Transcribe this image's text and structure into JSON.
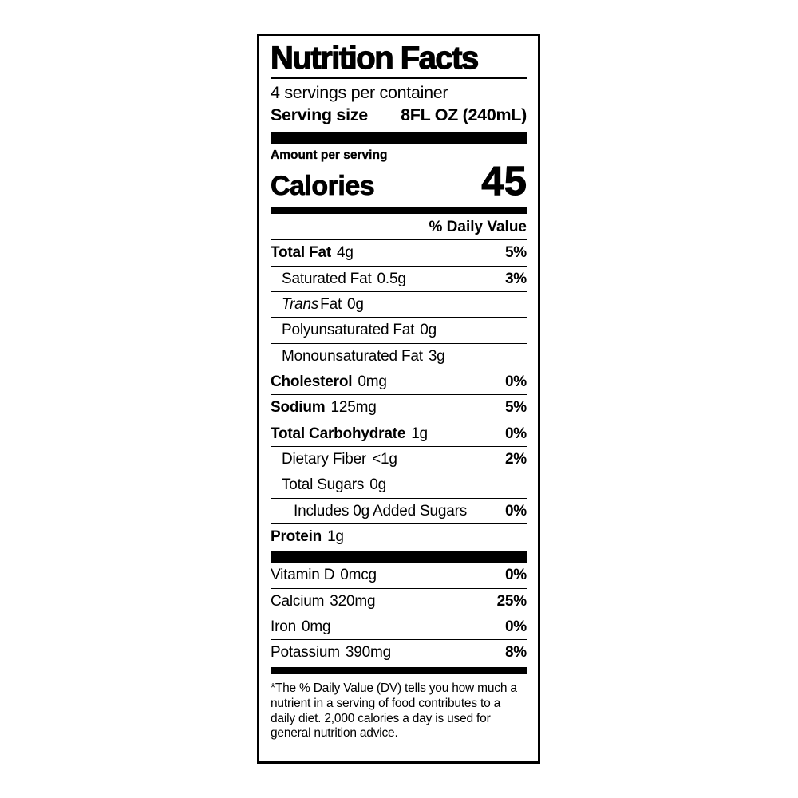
{
  "nutrition_label": {
    "title": "Nutrition Facts",
    "servings_per_container": "4 servings per container",
    "serving_size": {
      "label": "Serving size",
      "value": "8FL OZ (240mL)"
    },
    "amount_per_serving": "Amount per serving",
    "calories": {
      "label": "Calories",
      "value": "45"
    },
    "daily_value_header": "% Daily Value",
    "nutrients": [
      {
        "name": "Total Fat",
        "amount": "4g",
        "dv": "5%"
      },
      {
        "name": "Saturated Fat",
        "amount": "0.5g",
        "dv": "3%"
      },
      {
        "name_italic": "Trans",
        "name_rest": "Fat",
        "amount": "0g",
        "dv": ""
      },
      {
        "name": "Polyunsaturated Fat",
        "amount": "0g",
        "dv": ""
      },
      {
        "name": "Monounsaturated Fat",
        "amount": "3g",
        "dv": ""
      },
      {
        "name": "Cholesterol",
        "amount": "0mg",
        "dv": "0%"
      },
      {
        "name": "Sodium",
        "amount": "125mg",
        "dv": "5%"
      },
      {
        "name": "Total Carbohydrate",
        "amount": "1g",
        "dv": "0%"
      },
      {
        "name": "Dietary Fiber",
        "amount": "<1g",
        "dv": "2%"
      },
      {
        "name": "Total Sugars",
        "amount": "0g",
        "dv": ""
      },
      {
        "name": "Includes 0g Added Sugars",
        "amount": "",
        "dv": "0%"
      },
      {
        "name": "Protein",
        "amount": "1g",
        "dv": ""
      }
    ],
    "vitamins": [
      {
        "name": "Vitamin D",
        "amount": "0mcg",
        "dv": "0%"
      },
      {
        "name": "Calcium",
        "amount": "320mg",
        "dv": "25%"
      },
      {
        "name": "Iron",
        "amount": "0mg",
        "dv": "0%"
      },
      {
        "name": "Potassium",
        "amount": "390mg",
        "dv": "8%"
      }
    ],
    "footnote": "*The % Daily Value (DV) tells you how much a nutrient in a serving of food contributes to a daily diet. 2,000 calories a day is used for general nutrition advice.",
    "colors": {
      "ink": "#000000",
      "background": "#ffffff"
    }
  }
}
